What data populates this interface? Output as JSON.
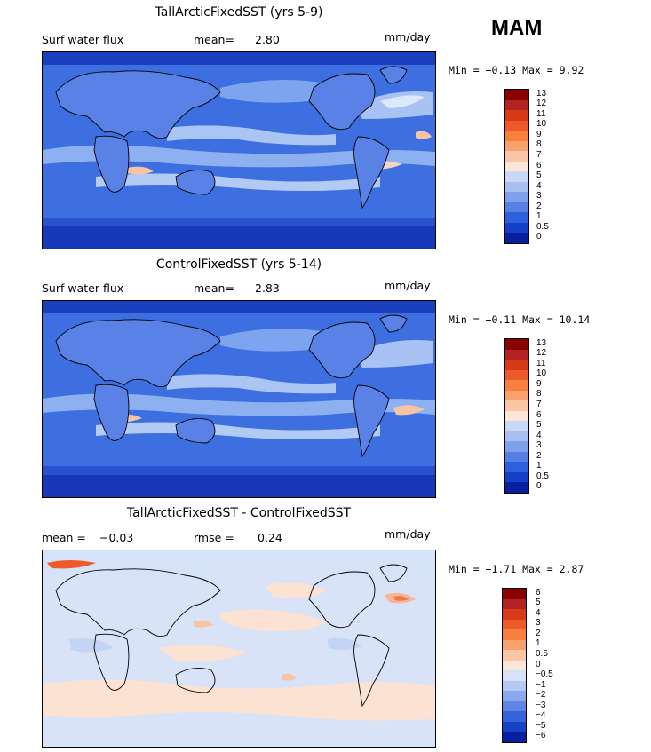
{
  "season": "MAM",
  "panels": [
    {
      "title": "TallArcticFixedSST (yrs 5-9)",
      "left_label": "Surf water flux",
      "stat1_name": "mean=",
      "stat1_value": "2.80",
      "stat2_name": "",
      "stat2_value": "",
      "units": "mm/day",
      "minmax": "Min =   −0.13 Max =    9.92",
      "colorbar": {
        "levels": [
          "13",
          "12",
          "11",
          "10",
          "9",
          "8",
          "7",
          "6",
          "5",
          "4",
          "3",
          "2",
          "1",
          "0.5",
          "0"
        ],
        "colors": [
          "#8b0000",
          "#b22222",
          "#d73a16",
          "#ef5a2a",
          "#f7803f",
          "#f9a16c",
          "#fbc6a6",
          "#fbe6d8",
          "#c8d8f6",
          "#a8bff2",
          "#7fa0ec",
          "#5680e5",
          "#2e5fde",
          "#1640c8",
          "#0a1ea0"
        ]
      }
    },
    {
      "title": "ControlFixedSST (yrs 5-14)",
      "left_label": "Surf water flux",
      "stat1_name": "mean=",
      "stat1_value": "2.83",
      "stat2_name": "",
      "stat2_value": "",
      "units": "mm/day",
      "minmax": "Min =   −0.11 Max =   10.14",
      "colorbar": {
        "levels": [
          "13",
          "12",
          "11",
          "10",
          "9",
          "8",
          "7",
          "6",
          "5",
          "4",
          "3",
          "2",
          "1",
          "0.5",
          "0"
        ],
        "colors": [
          "#8b0000",
          "#b22222",
          "#d73a16",
          "#ef5a2a",
          "#f7803f",
          "#f9a16c",
          "#fbc6a6",
          "#fbe6d8",
          "#c8d8f6",
          "#a8bff2",
          "#7fa0ec",
          "#5680e5",
          "#2e5fde",
          "#1640c8",
          "#0a1ea0"
        ]
      }
    },
    {
      "title": "TallArcticFixedSST - ControlFixedSST",
      "left_label": "mean =",
      "stat1_name": "",
      "stat1_value": "−0.03",
      "stat2_name": "rmse =",
      "stat2_value": "0.24",
      "units": "mm/day",
      "minmax": "Min =   −1.71 Max =    2.87",
      "colorbar": {
        "levels": [
          "6",
          "5",
          "4",
          "3",
          "2",
          "1",
          "0.5",
          "0",
          "−0.5",
          "−1",
          "−2",
          "−3",
          "−4",
          "−5",
          "−6"
        ],
        "colors": [
          "#8b0000",
          "#b22222",
          "#d73a16",
          "#ef5a2a",
          "#f7803f",
          "#f9a16c",
          "#fbc6a6",
          "#fbe6d8",
          "#d5e2f7",
          "#b4c9f3",
          "#8aa8ec",
          "#5f86e4",
          "#3463da",
          "#1842c4",
          "#0a1ea0"
        ]
      }
    }
  ]
}
